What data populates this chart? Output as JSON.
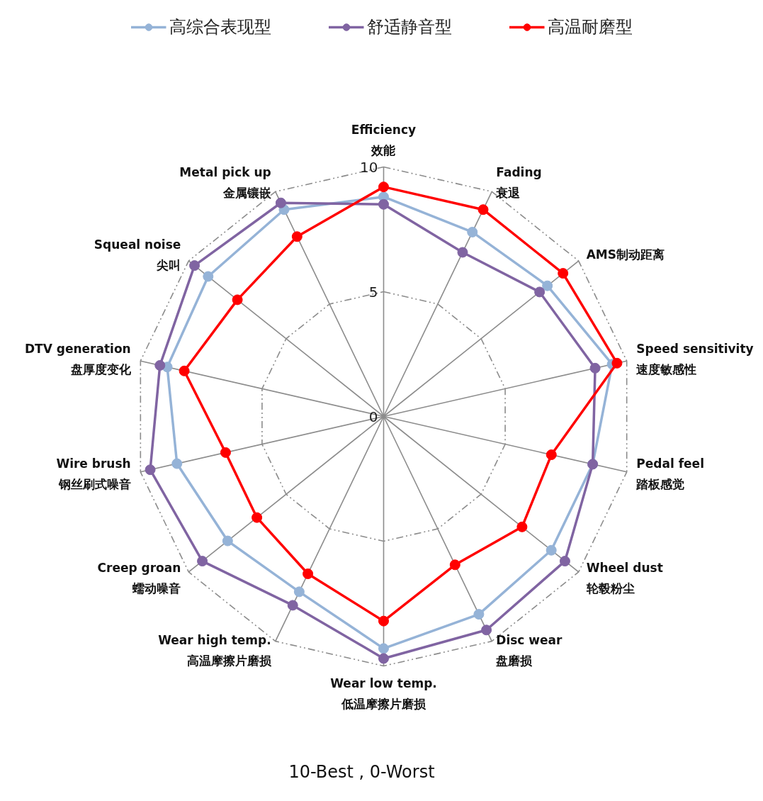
{
  "chart_data": {
    "type": "radar",
    "categories": [
      "Efficiency\n效能",
      "Fading\n衰退",
      "AMS制动距离",
      "Speed sensitivity\n速度敏感性",
      "Pedal feel\n踏板感觉",
      "Wheel dust\n轮毂粉尘",
      "Disc wear\n盘磨损",
      "Wear low temp.\n低温摩擦片磨损",
      "Wear high temp.\n高温摩擦片磨损",
      "Creep groan\n蠕动噪音",
      "Wire brush\n钢丝刷式噪音",
      "DTV generation\n盘厚度变化",
      "Squeal noise\n尖叫",
      "Metal pick up\n金属镶嵌"
    ],
    "series": [
      {
        "name": "高综合表现型",
        "color": "#95b3d7",
        "values": [
          8.8,
          8.2,
          8.4,
          9.4,
          8.6,
          8.6,
          8.8,
          9.3,
          7.8,
          8.0,
          8.5,
          8.9,
          9.0,
          9.2
        ]
      },
      {
        "name": "舒适静音型",
        "color": "#8064a2",
        "values": [
          8.5,
          7.3,
          8.0,
          8.7,
          8.6,
          9.3,
          9.5,
          9.7,
          8.4,
          9.3,
          9.6,
          9.2,
          9.7,
          9.5
        ]
      },
      {
        "name": "高温耐磨型",
        "color": "#ff0000",
        "values": [
          9.2,
          9.2,
          9.2,
          9.6,
          6.9,
          7.1,
          6.6,
          8.2,
          7.0,
          6.5,
          6.5,
          8.2,
          7.5,
          8.0
        ]
      }
    ],
    "ylim": [
      0,
      10
    ],
    "yticks": [
      0,
      5,
      10
    ],
    "grid": true,
    "legend": "top",
    "marker": "circle",
    "line_style": "solid",
    "annotations": [
      "10-Best , 0-Worst"
    ]
  }
}
